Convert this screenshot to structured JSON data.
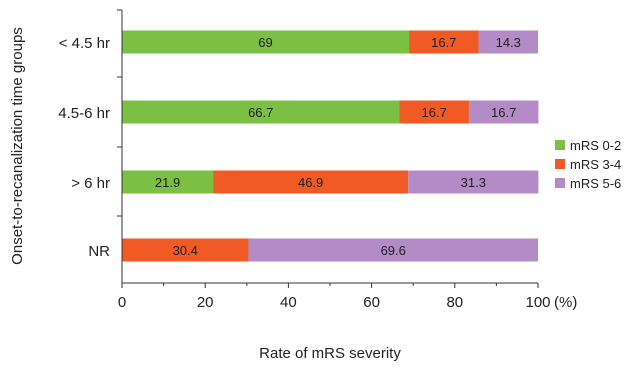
{
  "chart_data": {
    "type": "bar",
    "orientation": "horizontal",
    "stacked": true,
    "categories": [
      "< 4.5 hr",
      "4.5-6 hr",
      "> 6 hr",
      "NR"
    ],
    "series": [
      {
        "name": "mRS 0-2",
        "color": "#7bc043",
        "values": [
          69,
          66.7,
          21.9,
          0
        ],
        "labels": [
          "69",
          "66.7",
          "21.9",
          ""
        ]
      },
      {
        "name": "mRS 3-4",
        "color": "#f15a24",
        "values": [
          16.7,
          16.7,
          46.9,
          30.4
        ],
        "labels": [
          "16.7",
          "16.7",
          "46.9",
          "30.4"
        ]
      },
      {
        "name": "mRS 5-6",
        "color": "#b48ac7",
        "values": [
          14.3,
          16.7,
          31.3,
          69.6
        ],
        "labels": [
          "14.3",
          "16.7",
          "31.3",
          "69.6"
        ]
      }
    ],
    "xlabel": "Rate of mRS severity",
    "ylabel": "Onset-to-recanalization time groups",
    "xlim": [
      0,
      100
    ],
    "xticks": [
      "0",
      "20",
      "40",
      "60",
      "80",
      "100"
    ],
    "xunit": "(%)",
    "legend_position": "right",
    "grid": false
  }
}
